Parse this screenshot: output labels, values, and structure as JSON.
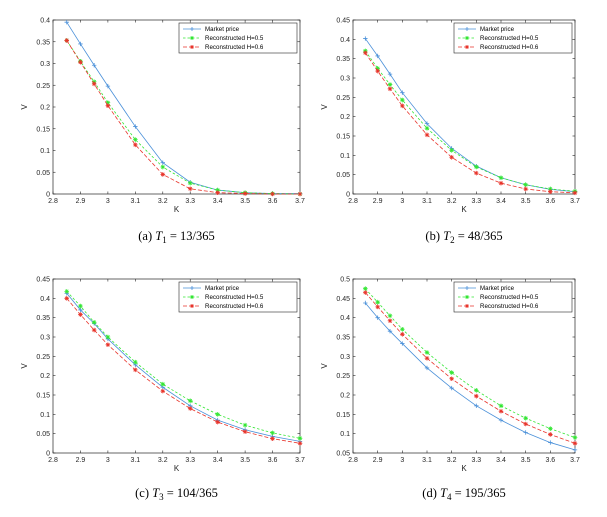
{
  "figure": {
    "legend": [
      "Market price",
      "Reconstructed H=0.5",
      "Reconstructed H=0.6"
    ],
    "series_colors": [
      "#4a90d9",
      "#33e633",
      "#e8342b"
    ]
  },
  "chart_data": [
    {
      "type": "line",
      "caption": {
        "label": "(a)",
        "var": "T",
        "sub": "1",
        "value": "= 13/365"
      },
      "xlabel": "K",
      "ylabel": "V",
      "xlim": [
        2.8,
        3.7
      ],
      "ylim": [
        0,
        0.4
      ],
      "xticks": [
        2.8,
        2.9,
        3,
        3.1,
        3.2,
        3.3,
        3.4,
        3.5,
        3.6,
        3.7
      ],
      "xtick_labels": [
        "2.8",
        "2.9",
        "3",
        "3.1",
        "3.2",
        "3.3",
        "3.4",
        "3.5",
        "3.6",
        "3.7"
      ],
      "yticks": [
        0,
        0.05,
        0.1,
        0.15,
        0.2,
        0.25,
        0.3,
        0.35,
        0.4
      ],
      "ytick_labels": [
        "0",
        "0.05",
        "0.1",
        "0.15",
        "0.2",
        "0.25",
        "0.3",
        "0.35",
        "0.4"
      ],
      "x": [
        2.85,
        2.9,
        2.95,
        3.0,
        3.1,
        3.2,
        3.3,
        3.4,
        3.5,
        3.6,
        3.7
      ],
      "series": [
        {
          "name": "Market price",
          "values": [
            0.395,
            0.345,
            0.296,
            0.248,
            0.155,
            0.072,
            0.027,
            0.009,
            0.003,
            0.001,
            0.001
          ]
        },
        {
          "name": "Reconstructed H=0.5",
          "values": [
            0.353,
            0.305,
            0.258,
            0.21,
            0.125,
            0.062,
            0.025,
            0.009,
            0.003,
            0.001,
            0.0
          ]
        },
        {
          "name": "Reconstructed H=0.6",
          "values": [
            0.353,
            0.303,
            0.253,
            0.203,
            0.113,
            0.045,
            0.012,
            0.003,
            0.001,
            0.0,
            0.0
          ]
        }
      ]
    },
    {
      "type": "line",
      "caption": {
        "label": "(b)",
        "var": "T",
        "sub": "2",
        "value": "= 48/365"
      },
      "xlabel": "K",
      "ylabel": "V",
      "xlim": [
        2.8,
        3.7
      ],
      "ylim": [
        0,
        0.45
      ],
      "xticks": [
        2.8,
        2.9,
        3,
        3.1,
        3.2,
        3.3,
        3.4,
        3.5,
        3.6,
        3.7
      ],
      "xtick_labels": [
        "2.8",
        "2.9",
        "3",
        "3.1",
        "3.2",
        "3.3",
        "3.4",
        "3.5",
        "3.6",
        "3.7"
      ],
      "yticks": [
        0,
        0.05,
        0.1,
        0.15,
        0.2,
        0.25,
        0.3,
        0.35,
        0.4,
        0.45
      ],
      "ytick_labels": [
        "0",
        "0.05",
        "0.1",
        "0.15",
        "0.2",
        "0.25",
        "0.3",
        "0.35",
        "0.4",
        "0.45"
      ],
      "x": [
        2.85,
        2.9,
        2.95,
        3.0,
        3.1,
        3.2,
        3.3,
        3.4,
        3.5,
        3.6,
        3.7
      ],
      "series": [
        {
          "name": "Market price",
          "values": [
            0.402,
            0.357,
            0.31,
            0.262,
            0.182,
            0.118,
            0.072,
            0.042,
            0.024,
            0.012,
            0.006
          ]
        },
        {
          "name": "Reconstructed H=0.5",
          "values": [
            0.37,
            0.325,
            0.283,
            0.243,
            0.17,
            0.113,
            0.07,
            0.042,
            0.024,
            0.013,
            0.007
          ]
        },
        {
          "name": "Reconstructed H=0.6",
          "values": [
            0.365,
            0.318,
            0.272,
            0.228,
            0.153,
            0.095,
            0.054,
            0.028,
            0.013,
            0.006,
            0.003
          ]
        }
      ]
    },
    {
      "type": "line",
      "caption": {
        "label": "(c)",
        "var": "T",
        "sub": "3",
        "value": "= 104/365"
      },
      "xlabel": "K",
      "ylabel": "V",
      "xlim": [
        2.8,
        3.7
      ],
      "ylim": [
        0,
        0.45
      ],
      "xticks": [
        2.8,
        2.9,
        3,
        3.1,
        3.2,
        3.3,
        3.4,
        3.5,
        3.6,
        3.7
      ],
      "xtick_labels": [
        "2.8",
        "2.9",
        "3",
        "3.1",
        "3.2",
        "3.3",
        "3.4",
        "3.5",
        "3.6",
        "3.7"
      ],
      "yticks": [
        0,
        0.05,
        0.1,
        0.15,
        0.2,
        0.25,
        0.3,
        0.35,
        0.4,
        0.45
      ],
      "ytick_labels": [
        "0",
        "0.05",
        "0.1",
        "0.15",
        "0.2",
        "0.25",
        "0.3",
        "0.35",
        "0.4",
        "0.45"
      ],
      "x": [
        2.85,
        2.9,
        2.95,
        3.0,
        3.1,
        3.2,
        3.3,
        3.4,
        3.5,
        3.6,
        3.7
      ],
      "series": [
        {
          "name": "Market price",
          "values": [
            0.413,
            0.37,
            0.335,
            0.295,
            0.228,
            0.17,
            0.122,
            0.085,
            0.06,
            0.043,
            0.03
          ]
        },
        {
          "name": "Reconstructed H=0.5",
          "values": [
            0.418,
            0.38,
            0.338,
            0.3,
            0.235,
            0.178,
            0.135,
            0.1,
            0.072,
            0.052,
            0.038
          ]
        },
        {
          "name": "Reconstructed H=0.6",
          "values": [
            0.4,
            0.358,
            0.318,
            0.28,
            0.215,
            0.16,
            0.115,
            0.08,
            0.055,
            0.037,
            0.025
          ]
        }
      ]
    },
    {
      "type": "line",
      "caption": {
        "label": "(d)",
        "var": "T",
        "sub": "4",
        "value": "= 195/365"
      },
      "xlabel": "K",
      "ylabel": "V",
      "xlim": [
        2.8,
        3.7
      ],
      "ylim": [
        0.05,
        0.5
      ],
      "xticks": [
        2.8,
        2.9,
        3,
        3.1,
        3.2,
        3.3,
        3.4,
        3.5,
        3.6,
        3.7
      ],
      "xtick_labels": [
        "2.8",
        "2.9",
        "3",
        "3.1",
        "3.2",
        "3.3",
        "3.4",
        "3.5",
        "3.6",
        "3.7"
      ],
      "yticks": [
        0.05,
        0.1,
        0.15,
        0.2,
        0.25,
        0.3,
        0.35,
        0.4,
        0.45,
        0.5
      ],
      "ytick_labels": [
        "0.05",
        "0.1",
        "0.15",
        "0.2",
        "0.25",
        "0.3",
        "0.35",
        "0.4",
        "0.45",
        "0.5"
      ],
      "x": [
        2.85,
        2.9,
        2.95,
        3.0,
        3.1,
        3.2,
        3.3,
        3.4,
        3.5,
        3.6,
        3.7
      ],
      "series": [
        {
          "name": "Market price",
          "values": [
            0.438,
            0.4,
            0.365,
            0.333,
            0.27,
            0.218,
            0.172,
            0.135,
            0.103,
            0.077,
            0.058
          ]
        },
        {
          "name": "Reconstructed H=0.5",
          "values": [
            0.475,
            0.44,
            0.405,
            0.37,
            0.31,
            0.258,
            0.212,
            0.172,
            0.14,
            0.113,
            0.09
          ]
        },
        {
          "name": "Reconstructed H=0.6",
          "values": [
            0.465,
            0.428,
            0.392,
            0.357,
            0.295,
            0.242,
            0.197,
            0.158,
            0.125,
            0.098,
            0.075
          ]
        }
      ]
    }
  ]
}
